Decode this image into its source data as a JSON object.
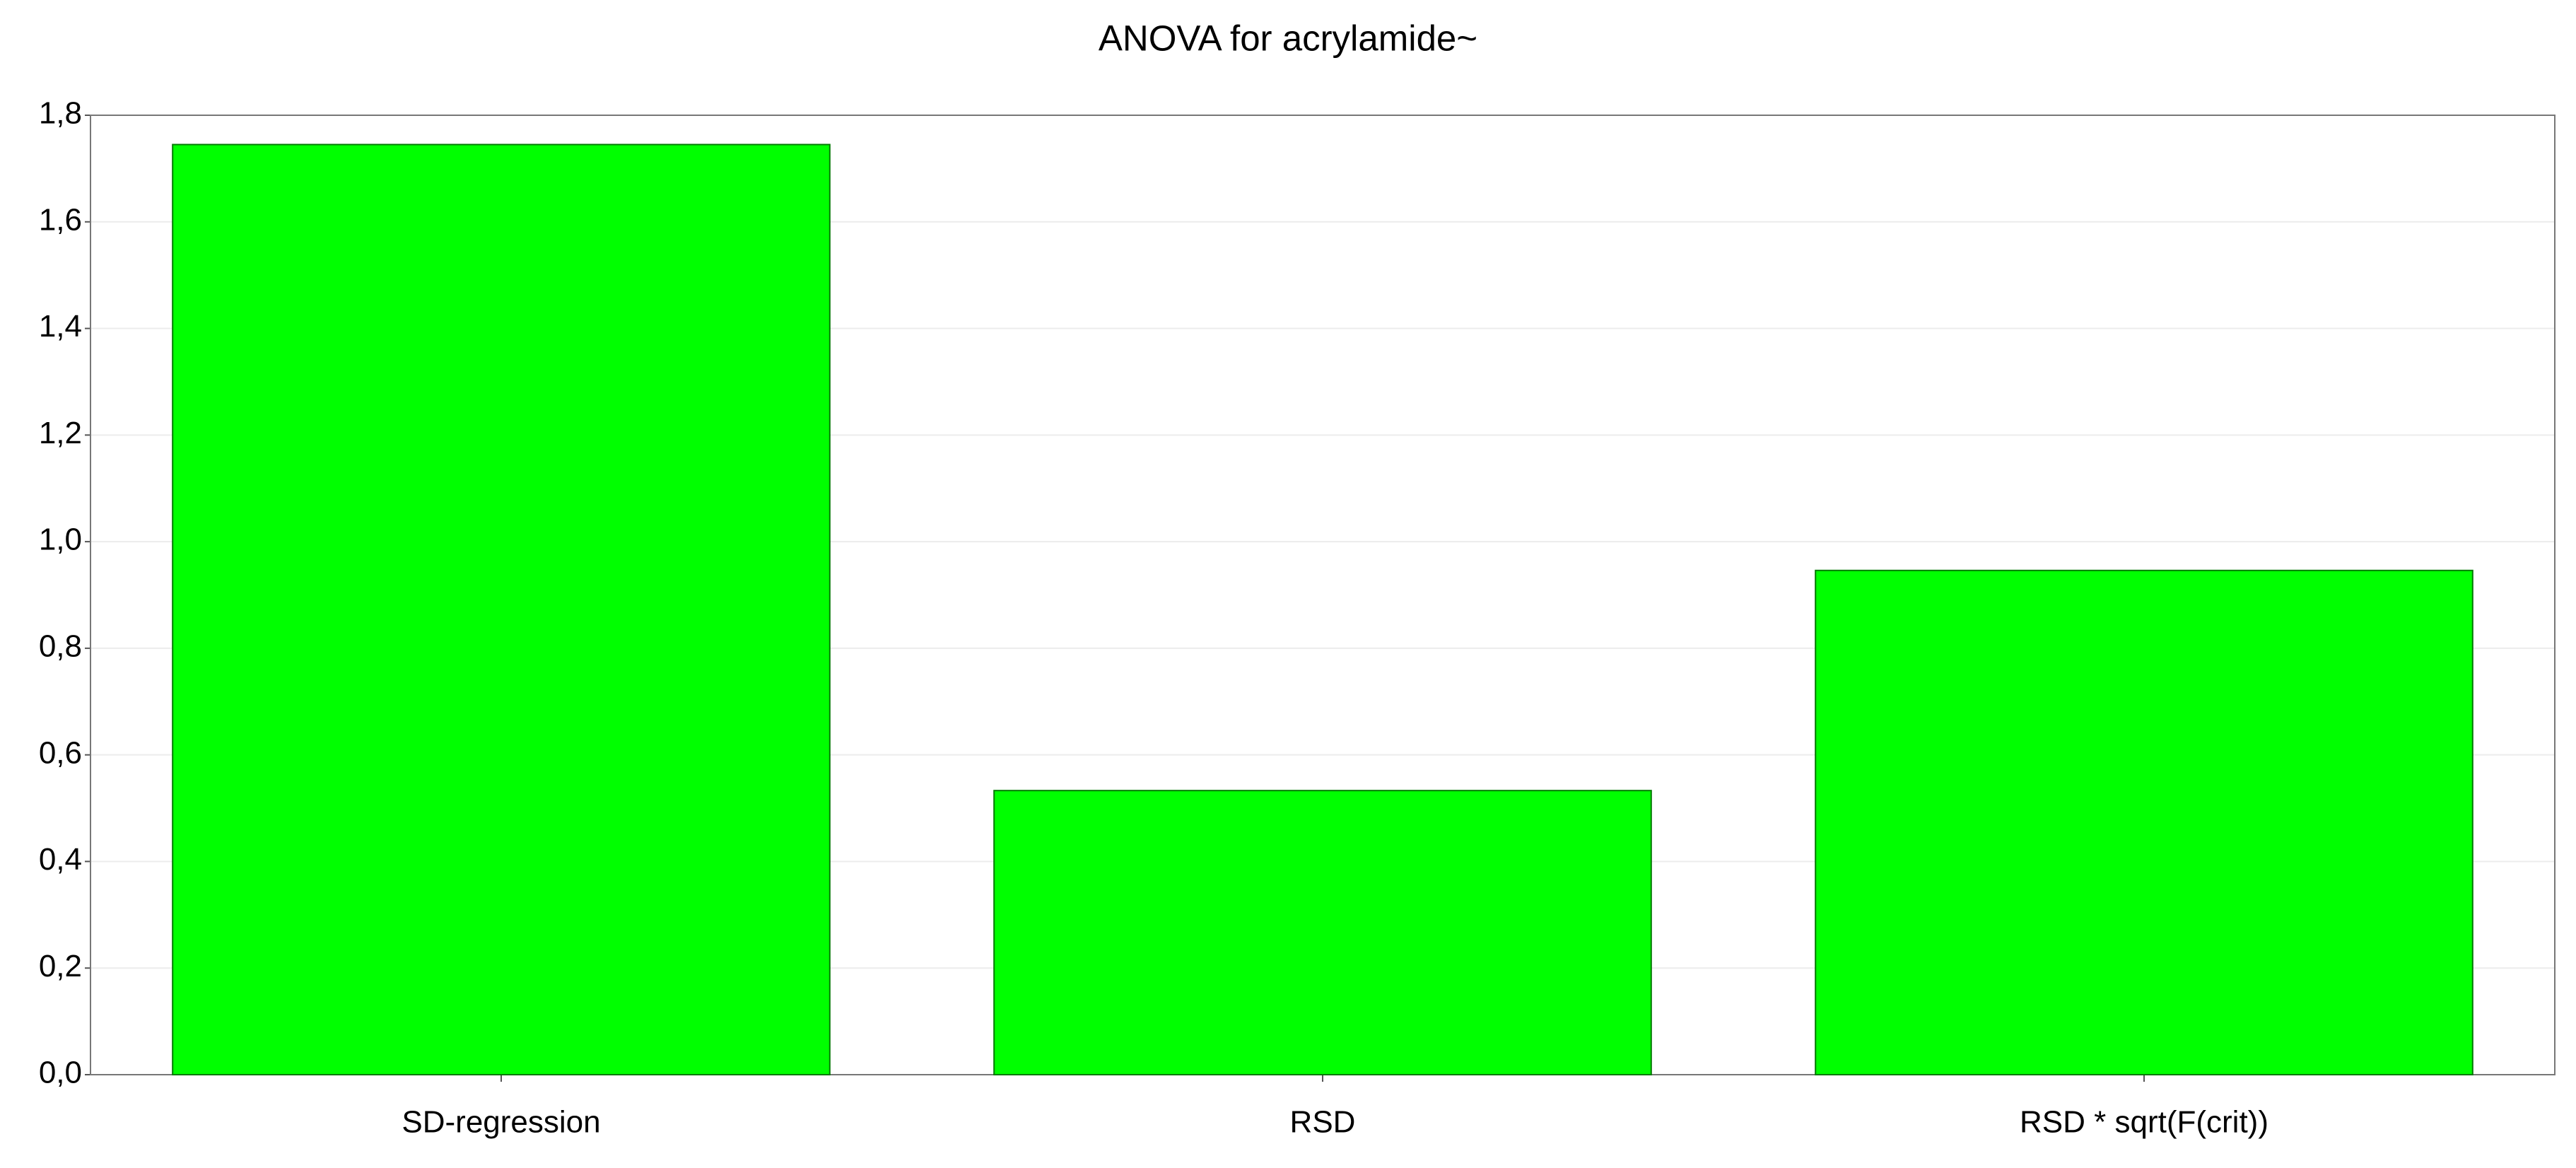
{
  "chart_data": {
    "type": "bar",
    "title": "ANOVA for acrylamide~",
    "categories": [
      "SD-regression",
      "RSD",
      "RSD * sqrt(F(crit))"
    ],
    "values": [
      1.745,
      0.533,
      0.946
    ],
    "color": "#00ff00",
    "ylim": [
      0,
      1.8
    ],
    "yticks": [
      {
        "value": 0,
        "label": "0,0"
      },
      {
        "value": 0.2,
        "label": "0,2"
      },
      {
        "value": 0.4,
        "label": "0,4"
      },
      {
        "value": 0.6,
        "label": "0,6"
      },
      {
        "value": 0.8,
        "label": "0,8"
      },
      {
        "value": 1.0,
        "label": "1,0"
      },
      {
        "value": 1.2,
        "label": "1,2"
      },
      {
        "value": 1.4,
        "label": "1,4"
      },
      {
        "value": 1.6,
        "label": "1,6"
      },
      {
        "value": 1.8,
        "label": "1,8"
      }
    ],
    "grid": true
  }
}
